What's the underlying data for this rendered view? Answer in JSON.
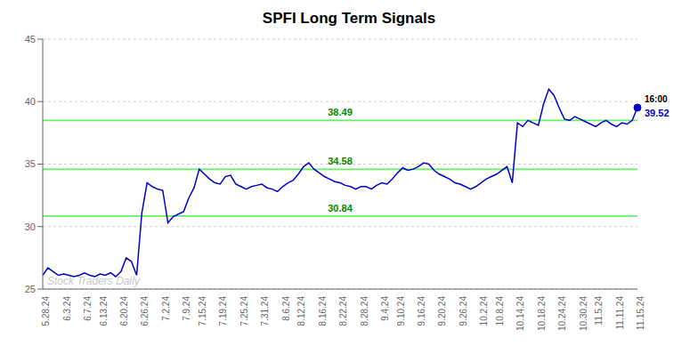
{
  "chart_data": {
    "type": "line",
    "title": "SPFI Long Term Signals",
    "categories": [
      "5.28.24",
      null,
      null,
      null,
      "6.3.24",
      null,
      null,
      null,
      "6.7.24",
      null,
      null,
      "6.13.24",
      null,
      null,
      null,
      "6.20.24",
      null,
      null,
      null,
      "6.26.24",
      null,
      null,
      null,
      "7.2.24",
      null,
      null,
      null,
      "7.9.24",
      null,
      null,
      "7.15.24",
      null,
      null,
      null,
      "7.19.24",
      null,
      null,
      null,
      "7.25.24",
      null,
      null,
      null,
      "7.31.24",
      null,
      null,
      null,
      "8.6.24",
      null,
      null,
      "8.12.24",
      null,
      null,
      null,
      "8.16.24",
      null,
      null,
      null,
      "8.22.24",
      null,
      null,
      null,
      "8.28.24",
      null,
      null,
      null,
      "9.4.24",
      null,
      null,
      "9.10.24",
      null,
      null,
      null,
      "9.16.24",
      null,
      null,
      null,
      "9.20.24",
      null,
      null,
      null,
      "9.26.24",
      null,
      null,
      null,
      "10.2.24",
      null,
      null,
      "10.8.24",
      null,
      null,
      null,
      "10.14.24",
      null,
      null,
      null,
      "10.18.24",
      null,
      null,
      null,
      "10.24.24",
      null,
      null,
      null,
      "10.30.24",
      null,
      null,
      "11.5.24",
      null,
      null,
      null,
      "11.11.24",
      null,
      null,
      null,
      "11.15.24"
    ],
    "values": [
      26.1,
      26.7,
      26.4,
      26.1,
      26.2,
      26.1,
      26.0,
      26.1,
      26.3,
      26.1,
      26.0,
      26.2,
      26.1,
      26.3,
      26.0,
      26.4,
      27.5,
      27.2,
      26.1,
      31.1,
      33.5,
      33.2,
      33.0,
      32.9,
      30.3,
      30.8,
      31.0,
      31.2,
      32.3,
      33.1,
      34.6,
      34.2,
      33.8,
      33.5,
      33.4,
      34.0,
      34.1,
      33.4,
      33.2,
      33.0,
      33.2,
      33.3,
      33.4,
      33.1,
      33.0,
      32.8,
      33.2,
      33.5,
      33.7,
      34.2,
      34.8,
      35.1,
      34.6,
      34.3,
      34.0,
      33.8,
      33.6,
      33.5,
      33.3,
      33.2,
      33.0,
      33.2,
      33.2,
      33.0,
      33.3,
      33.5,
      33.4,
      33.8,
      34.3,
      34.7,
      34.5,
      34.6,
      34.8,
      35.1,
      35.0,
      34.5,
      34.2,
      34.0,
      33.8,
      33.5,
      33.4,
      33.2,
      33.0,
      33.2,
      33.5,
      33.8,
      34.0,
      34.2,
      34.5,
      34.8,
      33.5,
      38.3,
      38.0,
      38.5,
      38.3,
      38.1,
      39.8,
      41.0,
      40.5,
      39.5,
      38.6,
      38.5,
      38.8,
      38.6,
      38.4,
      38.2,
      38.0,
      38.3,
      38.5,
      38.2,
      38.0,
      38.3,
      38.2,
      38.5,
      39.52
    ],
    "color": "#0000cc",
    "ylim": [
      25,
      45
    ],
    "yticks": [
      25,
      30,
      35,
      40,
      45
    ],
    "grid": true,
    "hlines": [
      {
        "value": 30.84,
        "label": "30.84",
        "color": "#66ee66"
      },
      {
        "value": 34.58,
        "label": "34.58",
        "color": "#66ee66"
      },
      {
        "value": 38.49,
        "label": "38.49",
        "color": "#66ee66"
      }
    ],
    "watermark": "Stock Traders Daily",
    "end_labels": {
      "time": "16:00",
      "price": "39.52"
    }
  }
}
